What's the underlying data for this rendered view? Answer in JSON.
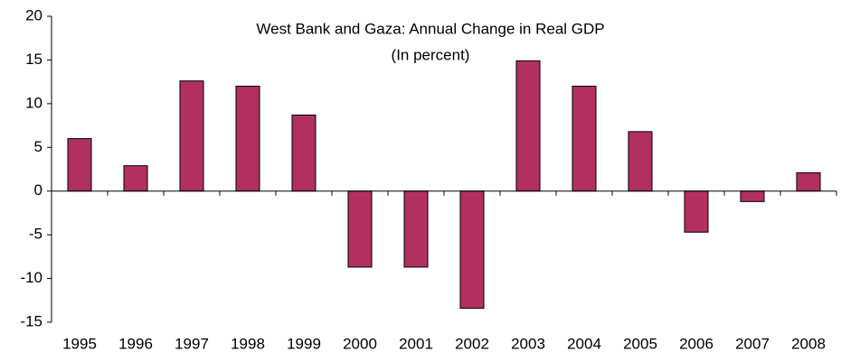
{
  "chart_data": {
    "type": "bar",
    "title": "West Bank and Gaza: Annual Change in Real GDP",
    "subtitle": "(In percent)",
    "categories": [
      "1995",
      "1996",
      "1997",
      "1998",
      "1999",
      "2000",
      "2001",
      "2002",
      "2003",
      "2004",
      "2005",
      "2006",
      "2007",
      "2008"
    ],
    "values": [
      6.0,
      2.9,
      12.6,
      12.0,
      8.7,
      -8.7,
      -8.7,
      -13.4,
      14.9,
      12.0,
      6.8,
      -4.7,
      -1.2,
      2.1
    ],
    "color": "#b2305f",
    "ylim": [
      -15,
      20
    ],
    "yticks": [
      -15,
      -10,
      -5,
      0,
      5,
      10,
      15,
      20
    ],
    "grid": false
  }
}
